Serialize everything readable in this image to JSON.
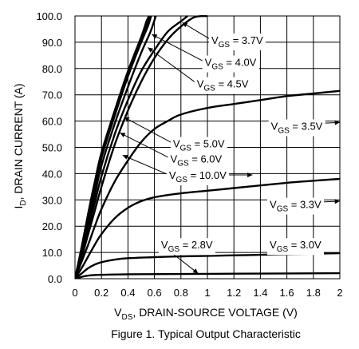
{
  "chart_data": {
    "type": "line",
    "title": "",
    "caption": "Figure 1. Typical Output Characteristic",
    "xlabel": {
      "sym": "V",
      "sub": "DS",
      "rest": ", DRAIN-SOURCE VOLTAGE (V)"
    },
    "ylabel": {
      "sym": "I",
      "sub": "D",
      "rest": ", DRAIN CURRENT (A)"
    },
    "xlim": [
      0,
      2
    ],
    "ylim": [
      0,
      100
    ],
    "xticks": [
      {
        "v": 0,
        "label": "0"
      },
      {
        "v": 0.2,
        "label": "0.2"
      },
      {
        "v": 0.4,
        "label": "0.4"
      },
      {
        "v": 0.6,
        "label": "0.6"
      },
      {
        "v": 0.8,
        "label": "0.8"
      },
      {
        "v": 1.0,
        "label": "1"
      },
      {
        "v": 1.2,
        "label": "1.2"
      },
      {
        "v": 1.4,
        "label": "1.4"
      },
      {
        "v": 1.6,
        "label": "1.6"
      },
      {
        "v": 1.8,
        "label": "1.8"
      },
      {
        "v": 2.0,
        "label": "2"
      }
    ],
    "yticks": [
      {
        "v": 0,
        "label": "0.0"
      },
      {
        "v": 10,
        "label": "10.0"
      },
      {
        "v": 20,
        "label": "20.0"
      },
      {
        "v": 30,
        "label": "30.0"
      },
      {
        "v": 40,
        "label": "40.0"
      },
      {
        "v": 50,
        "label": "50.0"
      },
      {
        "v": 60,
        "label": "60.0"
      },
      {
        "v": 70,
        "label": "70.0"
      },
      {
        "v": 80,
        "label": "80.0"
      },
      {
        "v": 90,
        "label": "90.0"
      },
      {
        "v": 100,
        "label": "100.0"
      }
    ],
    "grid": true,
    "line_color": "#000000",
    "series": [
      {
        "name": "VGS = 10.0V",
        "points": [
          [
            0,
            0
          ],
          [
            0.05,
            12
          ],
          [
            0.1,
            25
          ],
          [
            0.15,
            37
          ],
          [
            0.2,
            48
          ],
          [
            0.3,
            64
          ],
          [
            0.4,
            79
          ],
          [
            0.5,
            92
          ],
          [
            0.54,
            98
          ],
          [
            0.56,
            100
          ]
        ]
      },
      {
        "name": "VGS = 6.0V",
        "points": [
          [
            0,
            0
          ],
          [
            0.05,
            11.5
          ],
          [
            0.1,
            24
          ],
          [
            0.15,
            36
          ],
          [
            0.2,
            47
          ],
          [
            0.3,
            63
          ],
          [
            0.4,
            78
          ],
          [
            0.5,
            91
          ],
          [
            0.545,
            97
          ],
          [
            0.565,
            100
          ]
        ]
      },
      {
        "name": "VGS = 5.0V",
        "points": [
          [
            0,
            0
          ],
          [
            0.05,
            11
          ],
          [
            0.1,
            23
          ],
          [
            0.15,
            35
          ],
          [
            0.2,
            46
          ],
          [
            0.3,
            62
          ],
          [
            0.4,
            77
          ],
          [
            0.5,
            90
          ],
          [
            0.55,
            96
          ],
          [
            0.575,
            100
          ]
        ]
      },
      {
        "name": "VGS = 4.5V",
        "points": [
          [
            0,
            0
          ],
          [
            0.05,
            10
          ],
          [
            0.1,
            21
          ],
          [
            0.15,
            32
          ],
          [
            0.2,
            43
          ],
          [
            0.3,
            59
          ],
          [
            0.4,
            73
          ],
          [
            0.5,
            86
          ],
          [
            0.57,
            94
          ],
          [
            0.61,
            100
          ]
        ]
      },
      {
        "name": "VGS = 4.0V",
        "points": [
          [
            0,
            0
          ],
          [
            0.05,
            9
          ],
          [
            0.1,
            19
          ],
          [
            0.15,
            29
          ],
          [
            0.2,
            39
          ],
          [
            0.3,
            55
          ],
          [
            0.4,
            68
          ],
          [
            0.5,
            79
          ],
          [
            0.6,
            87
          ],
          [
            0.7,
            94
          ],
          [
            0.8,
            98
          ],
          [
            0.85,
            100
          ]
        ]
      },
      {
        "name": "VGS = 3.7V",
        "points": [
          [
            0,
            0
          ],
          [
            0.05,
            8
          ],
          [
            0.1,
            17
          ],
          [
            0.15,
            26
          ],
          [
            0.2,
            35
          ],
          [
            0.3,
            51
          ],
          [
            0.4,
            64
          ],
          [
            0.5,
            75
          ],
          [
            0.6,
            84
          ],
          [
            0.7,
            91
          ],
          [
            0.8,
            96
          ],
          [
            0.9,
            99.5
          ],
          [
            1.0,
            100
          ]
        ]
      },
      {
        "name": "VGS = 3.5V",
        "points": [
          [
            0,
            0
          ],
          [
            0.05,
            6.5
          ],
          [
            0.1,
            13
          ],
          [
            0.15,
            20
          ],
          [
            0.2,
            26.5
          ],
          [
            0.3,
            37
          ],
          [
            0.4,
            45
          ],
          [
            0.5,
            52
          ],
          [
            0.6,
            57
          ],
          [
            0.7,
            60
          ],
          [
            0.8,
            62.5
          ],
          [
            1.0,
            65
          ],
          [
            1.2,
            66.5
          ],
          [
            1.4,
            68
          ],
          [
            1.6,
            69.5
          ],
          [
            1.8,
            70.5
          ],
          [
            2.0,
            71.5
          ]
        ]
      },
      {
        "name": "VGS = 3.3V",
        "points": [
          [
            0,
            0
          ],
          [
            0.05,
            4
          ],
          [
            0.1,
            8.5
          ],
          [
            0.15,
            13
          ],
          [
            0.2,
            17
          ],
          [
            0.3,
            23
          ],
          [
            0.4,
            27
          ],
          [
            0.5,
            29.5
          ],
          [
            0.6,
            31
          ],
          [
            0.8,
            32.5
          ],
          [
            1.0,
            33.5
          ],
          [
            1.2,
            34.5
          ],
          [
            1.4,
            35.5
          ],
          [
            1.6,
            36.5
          ],
          [
            1.8,
            37.3
          ],
          [
            2.0,
            38
          ]
        ]
      },
      {
        "name": "VGS = 3.0V",
        "points": [
          [
            0,
            0
          ],
          [
            0.05,
            2
          ],
          [
            0.1,
            4
          ],
          [
            0.15,
            5.4
          ],
          [
            0.2,
            6.3
          ],
          [
            0.3,
            7.3
          ],
          [
            0.4,
            7.8
          ],
          [
            0.6,
            8.2
          ],
          [
            0.8,
            8.5
          ],
          [
            1.0,
            8.7
          ],
          [
            1.2,
            8.9
          ],
          [
            1.4,
            9.1
          ],
          [
            1.6,
            9.3
          ],
          [
            1.8,
            9.5
          ],
          [
            2.0,
            9.7
          ]
        ]
      },
      {
        "name": "VGS = 2.8V",
        "points": [
          [
            0,
            0
          ],
          [
            0.05,
            0.7
          ],
          [
            0.1,
            1.2
          ],
          [
            0.2,
            1.5
          ],
          [
            0.4,
            1.7
          ],
          [
            0.8,
            1.8
          ],
          [
            1.2,
            1.9
          ],
          [
            1.6,
            2.0
          ],
          [
            2.0,
            2.1
          ]
        ]
      }
    ],
    "annotations": [
      {
        "name": "VGS = 3.7V",
        "sym": "V",
        "sub": "GS",
        "rest": " = 3.7V",
        "label_at": [
          1.03,
          90.9
        ],
        "pointers": [
          [
            0.81,
            97.5
          ]
        ]
      },
      {
        "name": "VGS = 4.0V",
        "sym": "V",
        "sub": "GS",
        "rest": " = 4.0V",
        "label_at": [
          0.98,
          82.5
        ],
        "pointers": [
          [
            0.58,
            93.0
          ]
        ]
      },
      {
        "name": "VGS = 4.5V",
        "sym": "V",
        "sub": "GS",
        "rest": " = 4.5V",
        "label_at": [
          0.92,
          74.3
        ],
        "pointers": [
          [
            0.55,
            88.0
          ]
        ]
      },
      {
        "name": "VGS = 3.5V",
        "sym": "V",
        "sub": "GS",
        "rest": " = 3.5V",
        "label_at": [
          1.48,
          58.2
        ],
        "pointers": [
          [
            2.0,
            59.5
          ]
        ]
      },
      {
        "name": "VGS = 5.0V",
        "sym": "V",
        "sub": "GS",
        "rest": " = 5.0V",
        "label_at": [
          0.74,
          51.5
        ],
        "pointers": [
          [
            0.37,
            61.5
          ]
        ]
      },
      {
        "name": "VGS = 6.0V",
        "sym": "V",
        "sub": "GS",
        "rest": " = 6.0V",
        "label_at": [
          0.72,
          45.8
        ],
        "pointers": [
          [
            0.34,
            55.5
          ]
        ]
      },
      {
        "name": "VGS = 10.0V",
        "sym": "V",
        "sub": "GS",
        "rest": " = 10.0V",
        "label_at": [
          0.71,
          39.5
        ],
        "pointers": [
          [
            0.36,
            47.0
          ],
          [
            1.34,
            39.5
          ]
        ]
      },
      {
        "name": "VGS = 3.3V",
        "sym": "V",
        "sub": "GS",
        "rest": " = 3.3V",
        "label_at": [
          1.47,
          28.4
        ],
        "pointers": [
          [
            2.0,
            29.5
          ]
        ]
      },
      {
        "name": "VGS = 2.8V",
        "sym": "V",
        "sub": "GS",
        "rest": " = 2.8V",
        "label_at": [
          0.65,
          13.0
        ],
        "pointers": [
          [
            0.93,
            2.0
          ]
        ]
      },
      {
        "name": "VGS = 3.0V",
        "sym": "V",
        "sub": "GS",
        "rest": " = 3.0V",
        "label_at": [
          1.47,
          13.0
        ],
        "pointers": []
      }
    ]
  }
}
